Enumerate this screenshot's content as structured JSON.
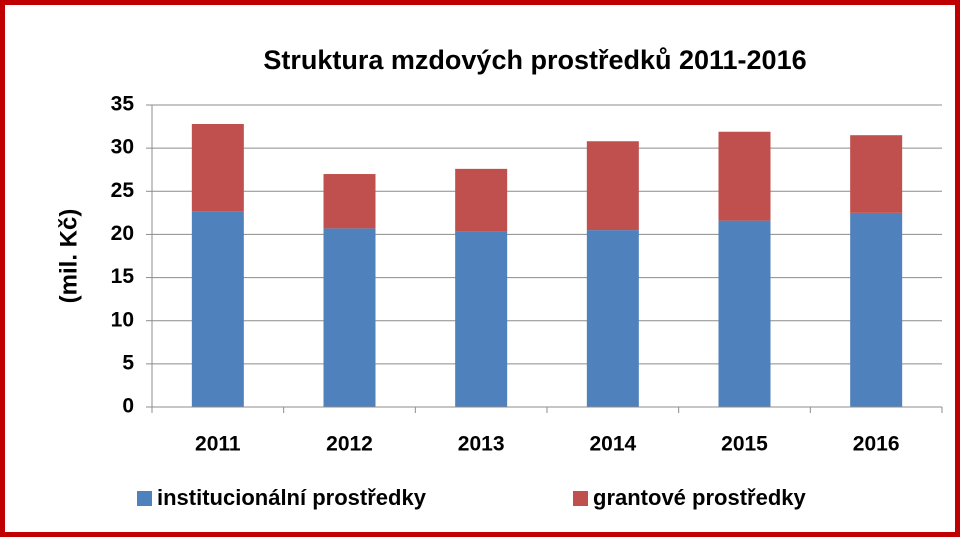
{
  "chart_data": {
    "type": "stacked_bar",
    "title": "Struktura mzdových prostředků 2011-2016",
    "y_label": "(mil. Kč)",
    "categories": [
      "2011",
      "2012",
      "2013",
      "2014",
      "2015",
      "2016"
    ],
    "series": [
      {
        "name": "institucionální prostředky",
        "color": "#4f81bd",
        "values": [
          22.7,
          20.7,
          20.3,
          20.5,
          21.6,
          22.5
        ]
      },
      {
        "name": "grantové prostředky",
        "color": "#c0504d",
        "values": [
          10.1,
          6.3,
          7.3,
          10.3,
          10.3,
          9.0
        ]
      }
    ],
    "ylim": [
      0,
      35
    ],
    "yticks": [
      0,
      5,
      10,
      15,
      20,
      25,
      30,
      35
    ],
    "grid": true,
    "legend": "bottom"
  }
}
